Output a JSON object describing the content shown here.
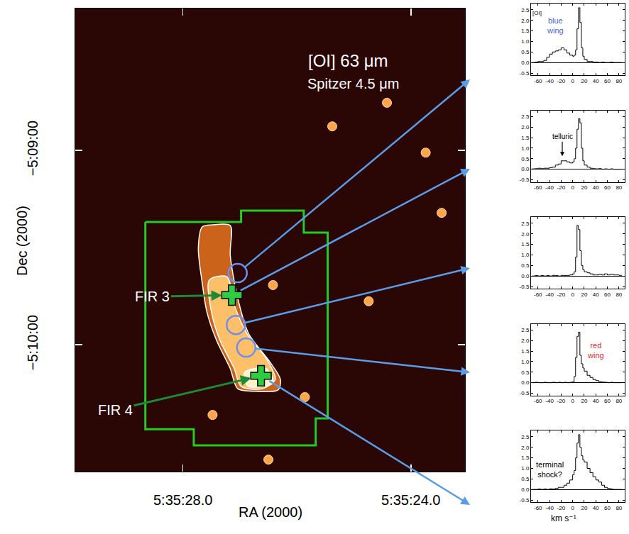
{
  "chart_data": [
    {
      "type": "image",
      "title": "[OI] 63 μm",
      "subtitle": "Spitzer 4.5 μm",
      "xlabel": "RA (2000)",
      "ylabel": "Dec (2000)",
      "xlim": [
        29.89,
        23.05
      ],
      "ylim": [
        -639.2,
        -496.2
      ],
      "xticks": [
        {
          "value": 28.0,
          "label": "5:35:28.0"
        },
        {
          "value": 24.0,
          "label": "5:35:24.0"
        }
      ],
      "yticks": [
        {
          "value": -540,
          "label": "−5:09:00"
        },
        {
          "value": -600,
          "label": "−5:10:00"
        }
      ],
      "footprint": {
        "color": "#22cc22",
        "x": [
          28.66,
          26.98,
          26.98,
          25.88,
          25.88,
          25.46,
          25.46,
          25.67,
          25.67,
          27.81,
          27.81,
          28.66,
          28.66
        ],
        "y": [
          -562.1,
          -562.1,
          -558.6,
          -558.6,
          -565.4,
          -565.4,
          -622.8,
          -622.8,
          -631.1,
          -631.1,
          -626.1,
          -626.1,
          -562.1
        ]
      },
      "contours": [
        {
          "x": [
            27.66,
            27.48,
            27.17,
            27.17,
            27.04,
            26.85,
            26.48,
            26.29,
            26.33,
            26.73,
            27.04,
            27.17,
            27.41,
            27.58,
            27.66,
            27.73,
            27.66
          ],
          "y": [
            -563.6,
            -563.0,
            -563.2,
            -572.4,
            -585.5,
            -596.5,
            -605.2,
            -610.7,
            -614.0,
            -614.4,
            -613.6,
            -607.4,
            -598.7,
            -589.9,
            -581.2,
            -570.2,
            -563.6
          ]
        },
        {
          "x": [
            27.54,
            27.23,
            27.1,
            26.88,
            26.54,
            26.38,
            26.6,
            26.98,
            27.1,
            27.35,
            27.5,
            27.54
          ],
          "y": [
            -580.1,
            -579.0,
            -587.7,
            -596.5,
            -604.2,
            -610.7,
            -613.6,
            -612.9,
            -607.4,
            -598.7,
            -589.9,
            -580.1
          ]
        },
        {
          "x": [
            26.92,
            26.54,
            26.42,
            26.85,
            26.92
          ],
          "y": [
            -608.5,
            -607.4,
            -611.8,
            -612.9,
            -608.5
          ]
        }
      ],
      "contour_color": "#ffffff",
      "bright_sources": {
        "color": "#ffa64d",
        "x": [
          26.42,
          26.5,
          24.42,
          23.74,
          25.38,
          23.46,
          24.74,
          27.48,
          25.86
        ],
        "y": [
          -581.6,
          -635.5,
          -525.3,
          -540.7,
          -532.6,
          -559.3,
          -586.6,
          -621.7,
          -616.2
        ]
      },
      "positions": [
        {
          "x": 27.04,
          "y": -577.9,
          "marker": "circle",
          "color": "#6d8ff0"
        },
        {
          "x": 27.14,
          "y": -584.7,
          "marker": "cross",
          "color": "#2ecc40",
          "name": "FIR 3"
        },
        {
          "x": 27.07,
          "y": -593.9,
          "marker": "circle",
          "color": "#6d8ff0"
        },
        {
          "x": 26.89,
          "y": -600.9,
          "marker": "circle",
          "color": "#6d8ff0"
        },
        {
          "x": 26.63,
          "y": -609.6,
          "marker": "cross",
          "color": "#2ecc40",
          "name": "FIR 4"
        }
      ]
    },
    {
      "type": "line",
      "line_style": "steps",
      "x": [
        -70,
        -65,
        -60,
        -55,
        -50,
        -45,
        -40,
        -35,
        -30,
        -25,
        -20,
        -15,
        -10,
        -5,
        0,
        2.5,
        5,
        7.5,
        10,
        12.5,
        15,
        17.5,
        20,
        25,
        30,
        35,
        40,
        45,
        50,
        55,
        60,
        65,
        70,
        75,
        80,
        85
      ],
      "series": [
        {
          "color": "#000000",
          "values": [
            0.0,
            0.02,
            0.05,
            0.05,
            0.1,
            0.25,
            0.4,
            0.5,
            0.55,
            0.6,
            0.7,
            0.6,
            0.45,
            0.35,
            0.3,
            0.35,
            0.6,
            1.6,
            2.6,
            1.9,
            0.7,
            0.3,
            0.15,
            0.05,
            0.05,
            0.02,
            0.02,
            0.0,
            0.02,
            0.0,
            0.0,
            0.02,
            0.0,
            0.0,
            0.0,
            0.0
          ]
        }
      ],
      "xlim": [
        -72,
        90
      ],
      "ylim": [
        -0.6,
        2.8
      ],
      "xticks": [
        -60,
        -40,
        -20,
        0,
        20,
        40,
        60,
        80
      ],
      "yticks": [
        -0.5,
        {
          "value": 0,
          "label": "0.0"
        },
        0.5,
        {
          "value": 1,
          "label": "1.0"
        },
        1.5,
        {
          "value": 2,
          "label": "2.0"
        },
        2.5
      ],
      "annotations": [
        {
          "text": "[OI]",
          "color": "#000000"
        },
        {
          "text": "blue wing",
          "color": "#4a63d8"
        }
      ]
    },
    {
      "type": "line",
      "line_style": "steps",
      "x": [
        -70,
        -65,
        -60,
        -55,
        -50,
        -45,
        -40,
        -35,
        -30,
        -25,
        -20,
        -15,
        -10,
        -5,
        0,
        2.5,
        5,
        7.5,
        10,
        12.5,
        15,
        17.5,
        20,
        25,
        30,
        35,
        40,
        45,
        50,
        55,
        60,
        65,
        70,
        75,
        80,
        85
      ],
      "series": [
        {
          "color": "#000000",
          "values": [
            0.02,
            0.03,
            0.05,
            0.03,
            0.05,
            0.05,
            0.08,
            0.1,
            0.2,
            0.25,
            0.4,
            0.4,
            0.35,
            0.3,
            0.35,
            0.5,
            1.0,
            1.9,
            2.4,
            2.2,
            1.0,
            0.4,
            0.2,
            0.1,
            0.05,
            0.03,
            0.02,
            0.03,
            0.0,
            0.02,
            0.0,
            0.02,
            0.0,
            0.0,
            0.0,
            0.0
          ]
        }
      ],
      "xlim": [
        -72,
        90
      ],
      "ylim": [
        -0.6,
        2.8
      ],
      "xticks": [
        -60,
        -40,
        -20,
        0,
        20,
        40,
        60,
        80
      ],
      "yticks": [
        -0.5,
        {
          "value": 0,
          "label": "0.0"
        },
        0.5,
        {
          "value": 1,
          "label": "1.0"
        },
        1.5,
        {
          "value": 2,
          "label": "2.0"
        },
        2.5
      ],
      "annotations": [
        {
          "text": "telluric",
          "color": "#000000"
        }
      ]
    },
    {
      "type": "line",
      "line_style": "steps",
      "x": [
        -70,
        -65,
        -60,
        -55,
        -50,
        -45,
        -40,
        -35,
        -30,
        -25,
        -20,
        -15,
        -10,
        -5,
        0,
        2.5,
        5,
        7.5,
        10,
        12.5,
        15,
        17.5,
        20,
        25,
        30,
        35,
        40,
        45,
        50,
        55,
        60,
        65,
        70,
        75,
        80,
        85
      ],
      "series": [
        {
          "color": "#000000",
          "values": [
            0.0,
            0.02,
            0.0,
            0.02,
            0.0,
            0.02,
            0.0,
            0.03,
            0.02,
            0.0,
            0.03,
            0.02,
            0.03,
            0.05,
            0.1,
            0.2,
            0.9,
            2.4,
            2.2,
            1.2,
            0.5,
            0.3,
            0.2,
            0.15,
            0.1,
            0.05,
            0.05,
            0.08,
            0.05,
            0.1,
            0.05,
            0.08,
            0.05,
            0.05,
            0.03,
            0.03
          ]
        }
      ],
      "xlim": [
        -72,
        90
      ],
      "ylim": [
        -0.6,
        2.8
      ],
      "xticks": [
        -60,
        -40,
        -20,
        0,
        20,
        40,
        60,
        80
      ],
      "yticks": [
        -0.5,
        {
          "value": 0,
          "label": "0.0"
        },
        0.5,
        {
          "value": 1,
          "label": "1.0"
        },
        1.5,
        {
          "value": 2,
          "label": "2.0"
        },
        2.5
      ],
      "annotations": []
    },
    {
      "type": "line",
      "line_style": "steps",
      "x": [
        -70,
        -65,
        -60,
        -55,
        -50,
        -45,
        -40,
        -35,
        -30,
        -25,
        -20,
        -15,
        -10,
        -5,
        0,
        2.5,
        5,
        7.5,
        10,
        12.5,
        15,
        17.5,
        20,
        25,
        30,
        35,
        40,
        45,
        50,
        55,
        60,
        65,
        70,
        75,
        80,
        85
      ],
      "series": [
        {
          "color": "#000000",
          "values": [
            0.0,
            0.02,
            0.0,
            0.0,
            0.02,
            0.0,
            0.0,
            0.02,
            0.0,
            0.02,
            0.0,
            0.02,
            0.0,
            0.02,
            0.05,
            0.3,
            1.2,
            2.2,
            2.4,
            1.3,
            0.9,
            0.7,
            0.55,
            0.35,
            0.25,
            0.15,
            0.1,
            0.05,
            0.03,
            0.02,
            0.0,
            0.02,
            0.0,
            0.0,
            0.0,
            0.0
          ]
        }
      ],
      "xlim": [
        -72,
        90
      ],
      "ylim": [
        -0.6,
        2.8
      ],
      "xticks": [
        -60,
        -40,
        -20,
        0,
        20,
        40,
        60,
        80
      ],
      "yticks": [
        -0.5,
        {
          "value": 0,
          "label": "0.0"
        },
        0.5,
        {
          "value": 1,
          "label": "1.0"
        },
        1.5,
        {
          "value": 2,
          "label": "2.0"
        },
        2.5
      ],
      "annotations": [
        {
          "text": "red wing",
          "color": "#e0262a"
        }
      ]
    },
    {
      "type": "line",
      "line_style": "steps",
      "x": [
        -70,
        -65,
        -60,
        -55,
        -50,
        -45,
        -40,
        -35,
        -30,
        -25,
        -20,
        -15,
        -10,
        -5,
        0,
        2.5,
        5,
        7.5,
        10,
        12.5,
        15,
        17.5,
        20,
        25,
        30,
        35,
        40,
        45,
        50,
        55,
        60,
        65,
        70,
        75,
        80,
        85
      ],
      "series": [
        {
          "color": "#000000",
          "values": [
            0.0,
            0.0,
            0.02,
            0.0,
            0.02,
            0.0,
            0.03,
            0.02,
            0.05,
            0.1,
            0.1,
            0.2,
            0.3,
            0.45,
            0.7,
            0.9,
            1.5,
            2.2,
            2.6,
            2.0,
            1.6,
            1.4,
            1.3,
            1.0,
            0.8,
            0.6,
            0.45,
            0.35,
            0.2,
            0.1,
            0.05,
            0.02,
            0.0,
            0.0,
            0.0,
            0.0
          ]
        }
      ],
      "xlim": [
        -72,
        90
      ],
      "ylim": [
        -0.6,
        2.8
      ],
      "xticks": [
        -60,
        -40,
        -20,
        0,
        20,
        40,
        60,
        80
      ],
      "yticks": [
        -0.5,
        {
          "value": 0,
          "label": "0.0"
        },
        0.5,
        {
          "value": 1,
          "label": "1.0"
        },
        1.5,
        {
          "value": 2,
          "label": "2.0"
        },
        2.5
      ],
      "xlabel": "km s⁻¹",
      "annotations": [
        {
          "text": "terminal shock?",
          "color": "#000000"
        }
      ]
    }
  ]
}
